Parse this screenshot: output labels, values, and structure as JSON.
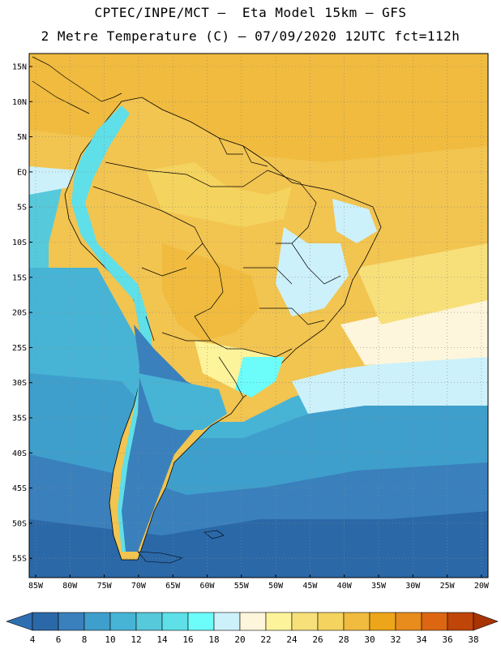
{
  "header": {
    "line1": "CPTEC/INPE/MCT –  Eta Model 15km – GFS",
    "line2": "2 Metre Temperature (C) – 07/09/2020 12UTC fct=112h"
  },
  "map": {
    "lat_labels": [
      "15N",
      "10N",
      "5N",
      "EQ",
      "5S",
      "10S",
      "15S",
      "20S",
      "25S",
      "30S",
      "35S",
      "40S",
      "45S",
      "50S",
      "55S"
    ],
    "lon_labels": [
      "85W",
      "80W",
      "75W",
      "70W",
      "65W",
      "60W",
      "55W",
      "50W",
      "45W",
      "40W",
      "35W",
      "30W",
      "25W",
      "20W"
    ]
  },
  "colorbar": {
    "labels": [
      "4",
      "6",
      "8",
      "10",
      "12",
      "14",
      "16",
      "18",
      "20",
      "22",
      "24",
      "26",
      "28",
      "30",
      "32",
      "34",
      "36",
      "38"
    ],
    "colors": [
      "#2b68a8",
      "#3a80bd",
      "#3f9fcc",
      "#47b4d6",
      "#56c9db",
      "#5fdfe8",
      "#6cfcfa",
      "#cdf1fa",
      "#fdf6dc",
      "#fdf39a",
      "#f7e07a",
      "#f4d35e",
      "#f0bb3e",
      "#eda619",
      "#e78c1d",
      "#dc6612",
      "#c04508"
    ],
    "left_arrow_color": "#2f6fb0",
    "right_arrow_color": "#a83404"
  }
}
